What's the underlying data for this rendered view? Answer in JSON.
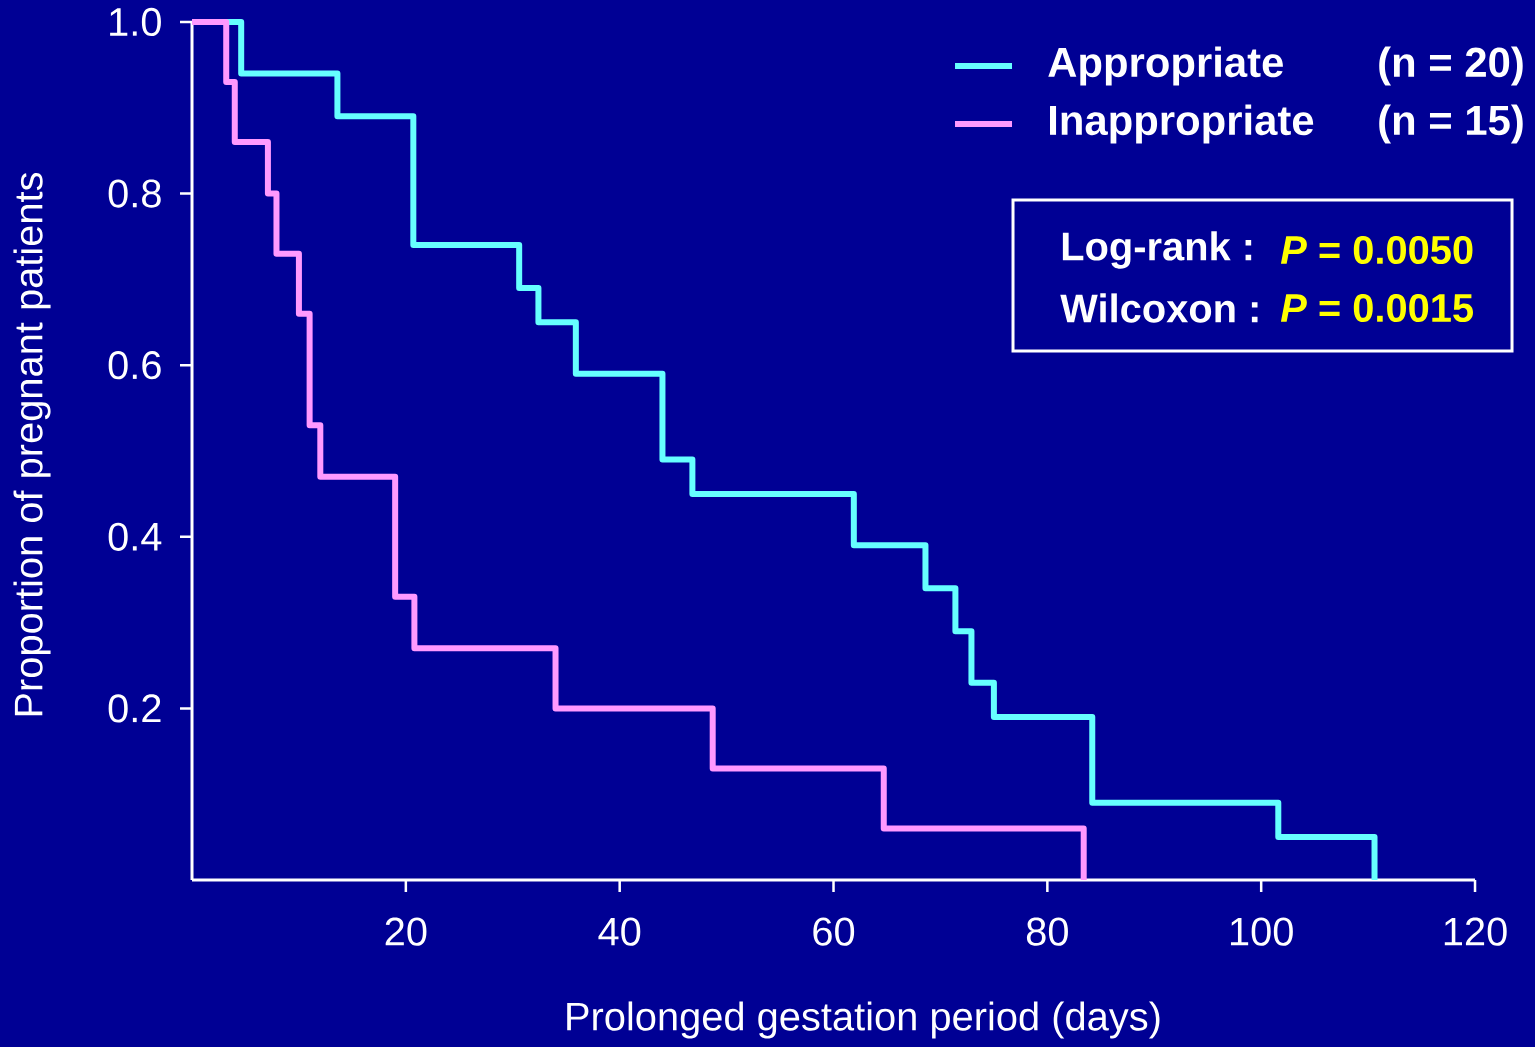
{
  "chart_data": {
    "type": "step",
    "xlabel": "Prolonged gestation period (days)",
    "ylabel": "Proportion of pregnant patients",
    "xlim": [
      0,
      120
    ],
    "xticks": [
      20,
      40,
      60,
      80,
      100,
      120
    ],
    "ylim": [
      0,
      1.0
    ],
    "yticks": [
      0.2,
      0.4,
      0.6,
      0.8,
      {
        "value": 1.0,
        "label": "1.0"
      }
    ],
    "legend": "top right",
    "series": [
      {
        "name": "Appropriate",
        "color": "#66ffff",
        "x": [
          0,
          4.6,
          13.6,
          20.7,
          30.6,
          32.4,
          35.9,
          44.0,
          46.8,
          61.9,
          68.6,
          71.4,
          72.9,
          75.0,
          84.2,
          101.6,
          110.6
        ],
        "values": [
          1.0,
          0.94,
          0.89,
          0.74,
          0.69,
          0.65,
          0.59,
          0.49,
          0.45,
          0.39,
          0.34,
          0.29,
          0.23,
          0.19,
          0.09,
          0.05,
          0
        ]
      },
      {
        "name": "Inappropriate",
        "color": "#ff99ff",
        "x": [
          0,
          3.2,
          4.0,
          7.1,
          7.9,
          10.0,
          11.0,
          12.0,
          19.0,
          20.8,
          34.0,
          48.7,
          64.7,
          83.4
        ],
        "values": [
          1.0,
          0.93,
          0.86,
          0.8,
          0.73,
          0.66,
          0.53,
          0.47,
          0.33,
          0.27,
          0.2,
          0.13,
          0.06,
          0
        ]
      }
    ],
    "annotations": [
      "(n = 20)",
      "(n = 15)",
      "Log-rank :",
      "*P* = 0.0050",
      "Wilcoxon :",
      "*P* = 0.0015"
    ]
  }
}
